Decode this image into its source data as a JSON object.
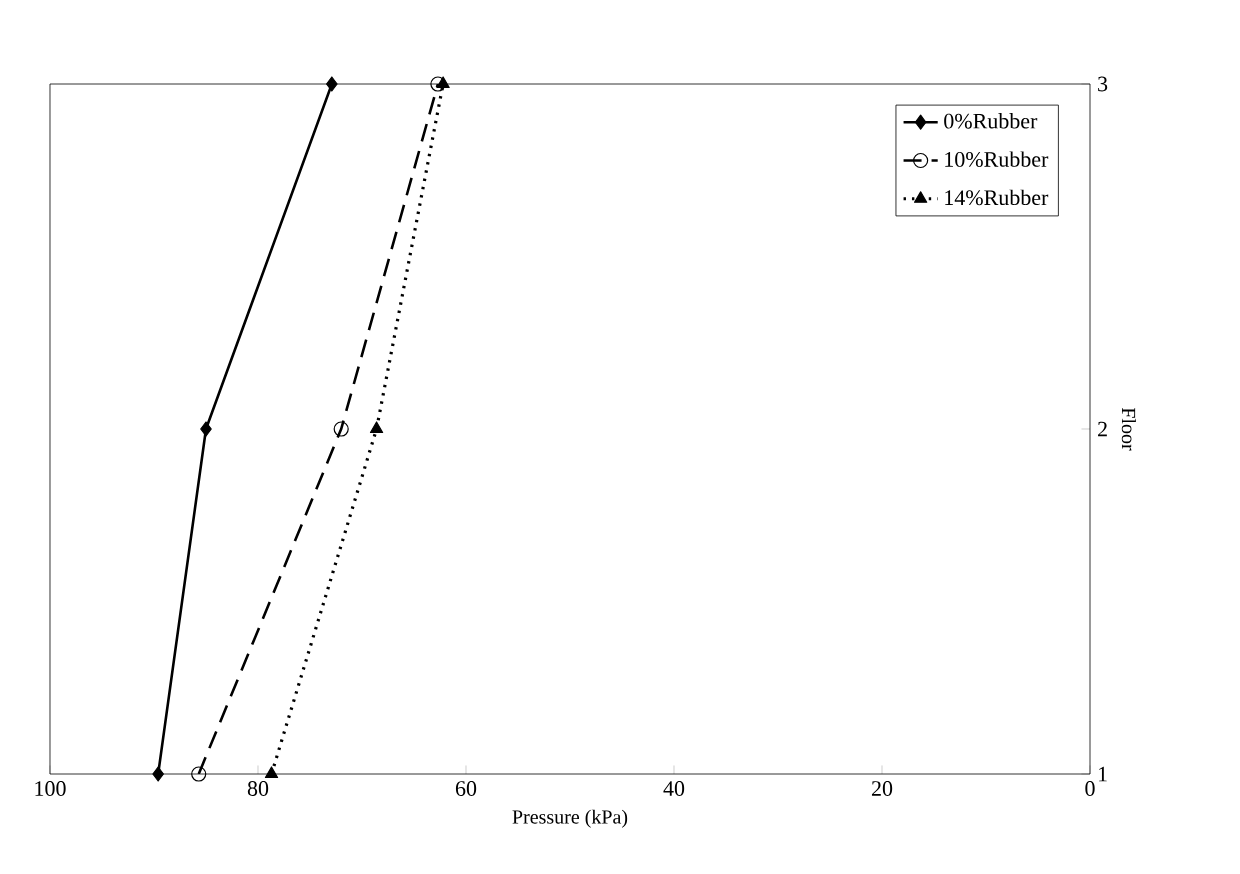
{
  "chart_data": {
    "type": "line",
    "xlabel": "Pressure (kPa)",
    "ylabel": "Floor",
    "xlim": [
      100,
      0
    ],
    "xticks": [
      100,
      80,
      60,
      40,
      20,
      0
    ],
    "ylim": [
      1,
      3
    ],
    "yticks": [
      1,
      2,
      3
    ],
    "legend": "top right",
    "grid": false,
    "series": [
      {
        "name": "0%Rubber",
        "color": "#000000",
        "marker": "diamond",
        "line_style": "solid",
        "x": [
          89.6,
          85,
          72.9
        ],
        "values": [
          1,
          2,
          3
        ]
      },
      {
        "name": "10%Rubber",
        "color": "#000000",
        "marker": "circle",
        "line_style": "dashed",
        "x": [
          85.7,
          72,
          62.7
        ],
        "values": [
          1,
          2,
          3
        ]
      },
      {
        "name": "14%Rubber",
        "color": "#000000",
        "marker": "triangle",
        "line_style": "dotted",
        "x": [
          78.7,
          68.6,
          62.2
        ],
        "values": [
          1,
          2,
          3
        ]
      }
    ]
  }
}
